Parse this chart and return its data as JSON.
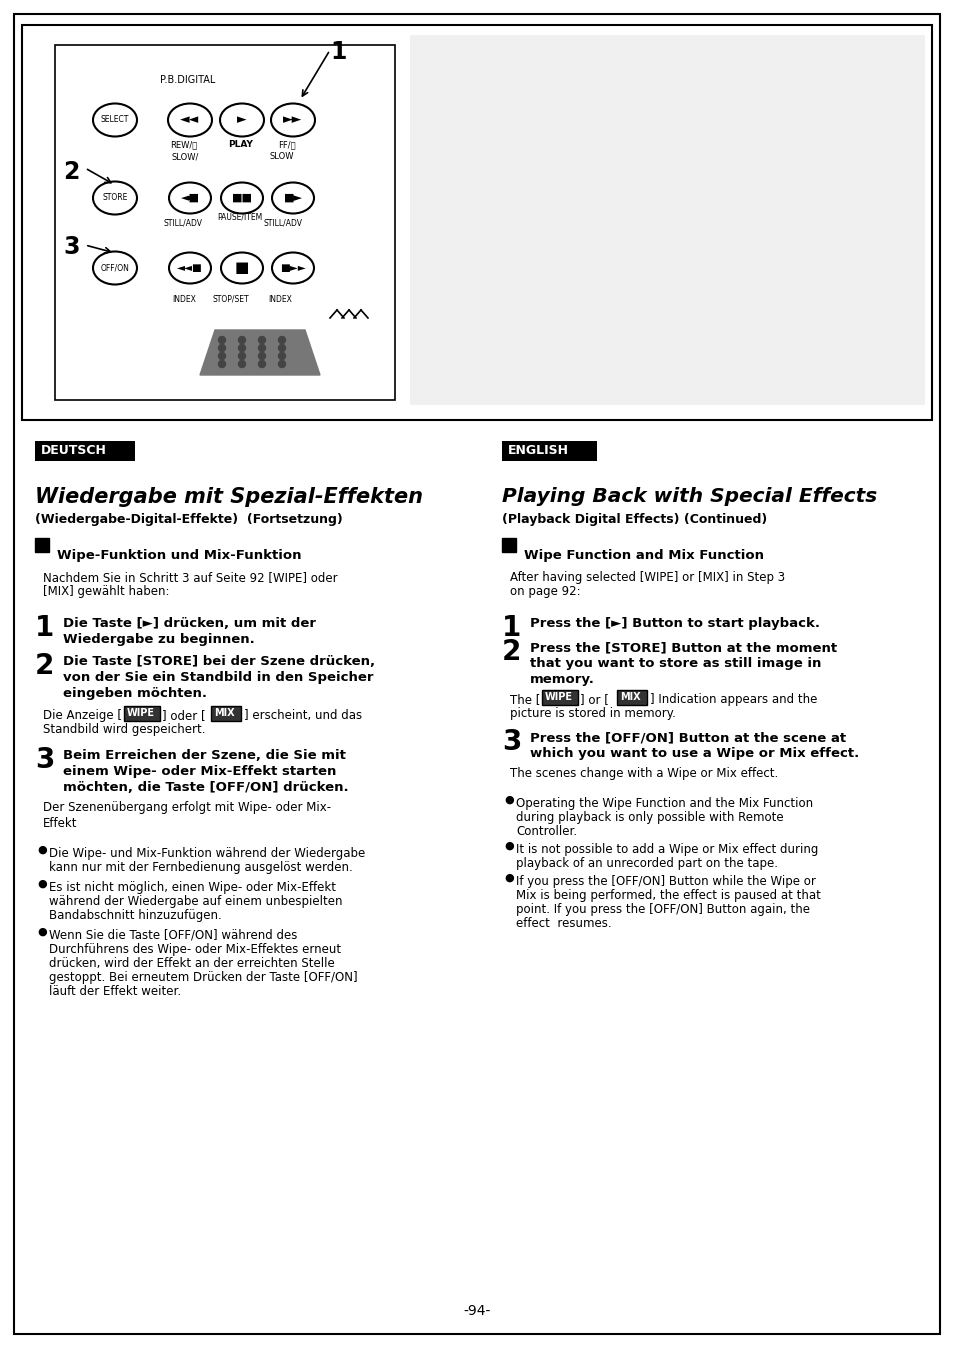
{
  "page_bg": "#ffffff",
  "deutsch_header": "DEUTSCH",
  "english_header": "ENGLISH",
  "de_title": "Wiedergabe mit Spezial-Effekten",
  "de_subtitle": "(Wiedergabe-Digital-Effekte)  (Fortsetzung)",
  "en_title": "Playing Back with Special Effects",
  "en_subtitle": "(Playback Digital Effects) (Continued)",
  "de_section_head": "Wipe-Funktion und Mix-Funktion",
  "de_section_body_line1": "Nachdem Sie in Schritt 3 auf Seite 92 [WIPE] oder",
  "de_section_body_line2": "[MIX] gewählt haben:",
  "en_section_head": "Wipe Function and Mix Function",
  "en_section_body_line1": "After having selected [WIPE] or [MIX] in Step 3",
  "en_section_body_line2": "on page 92:",
  "de_step1_line1": "Die Taste [►] drücken, um mit der",
  "de_step1_line2": "Wiedergabe zu beginnen.",
  "de_step2_line1": "Die Taste [STORE] bei der Szene drücken,",
  "de_step2_line2": "von der Sie ein Standbild in den Speicher",
  "de_step2_line3": "eingeben möchten.",
  "de_step2_norm1": "Die Anzeige [",
  "de_step2_norm2": "] oder [",
  "de_step2_norm3": "] erscheint, und das",
  "de_step2_norm4": "Standbild wird gespeichert.",
  "de_step3_line1": "Beim Erreichen der Szene, die Sie mit",
  "de_step3_line2": "einem Wipe- oder Mix-Effekt starten",
  "de_step3_line3": "möchten, die Taste [OFF/ON] drücken.",
  "de_step3_norm1": "Der Szenenübergang erfolgt mit Wipe- oder Mix-",
  "de_step3_norm2": "Effekt",
  "en_step1": "Press the [►] Button to start playback.",
  "en_step2_line1": "Press the [STORE] Button at the moment",
  "en_step2_line2": "that you want to store as still image in",
  "en_step2_line3": "memory.",
  "en_step2_norm1": "The [",
  "en_step2_norm2": "] or [",
  "en_step2_norm3": "] Indication appears and the",
  "en_step2_norm4": "picture is stored in memory.",
  "en_step3_line1": "Press the [OFF/ON] Button at the scene at",
  "en_step3_line2": "which you want to use a Wipe or Mix effect.",
  "en_step3_norm": "The scenes change with a Wipe or Mix effect.",
  "de_bullet1_l1": "Die Wipe- und Mix-Funktion während der Wiedergabe",
  "de_bullet1_l2": "kann nur mit der Fernbedienung ausgelöst werden.",
  "de_bullet2_l1": "Es ist nicht möglich, einen Wipe- oder Mix-Effekt",
  "de_bullet2_l2": "während der Wiedergabe auf einem unbespielten",
  "de_bullet2_l3": "Bandabschnitt hinzuzufügen.",
  "de_bullet3_l1": "Wenn Sie die Taste [OFF/ON] während des",
  "de_bullet3_l2": "Durchführens des Wipe- oder Mix-Effektes erneut",
  "de_bullet3_l3": "drücken, wird der Effekt an der erreichten Stelle",
  "de_bullet3_l4": "gestoppt. Bei erneutem Drücken der Taste [OFF/ON]",
  "de_bullet3_l5": "läuft der Effekt weiter.",
  "en_bullet1_l1": "Operating the Wipe Function and the Mix Function",
  "en_bullet1_l2": "during playback is only possible with Remote",
  "en_bullet1_l3": "Controller.",
  "en_bullet2_l1": "It is not possible to add a Wipe or Mix effect during",
  "en_bullet2_l2": "playback of an unrecorded part on the tape.",
  "en_bullet3_l1": "If you press the [OFF/ON] Button while the Wipe or",
  "en_bullet3_l2": "Mix is being performed, the effect is paused at that",
  "en_bullet3_l3": "point. If you press the [OFF/ON] Button again, the",
  "en_bullet3_l4": "effect  resumes.",
  "page_number": "-94-",
  "wipe_text": "WIPE",
  "mix_text": "MIX"
}
